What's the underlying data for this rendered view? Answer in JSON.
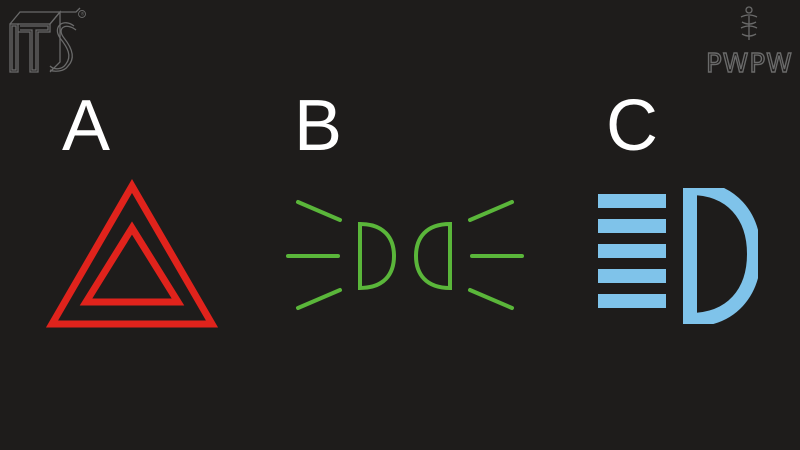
{
  "options": [
    {
      "letter": "A",
      "icon": "hazard-warning-triangle-icon",
      "color": "#e0231c"
    },
    {
      "letter": "B",
      "icon": "position-lights-icon",
      "color": "#5ab63a"
    },
    {
      "letter": "C",
      "icon": "high-beam-icon",
      "color": "#7fc3ea"
    }
  ],
  "logos": {
    "left": {
      "text": "ITS",
      "mark": "®"
    },
    "right": {
      "text": "PWPW"
    }
  },
  "colors": {
    "background": "#1e1c1b",
    "letter": "#ffffff",
    "logo": "#6a6a6a"
  }
}
